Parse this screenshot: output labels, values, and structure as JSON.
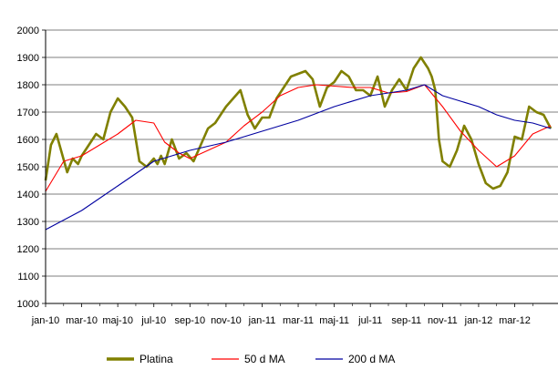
{
  "chart_data": {
    "type": "line",
    "title": "",
    "xlabel": "",
    "ylabel": "",
    "ylim": [
      1000,
      2000
    ],
    "yticks": [
      1000,
      1100,
      1200,
      1300,
      1400,
      1500,
      1600,
      1700,
      1800,
      1900,
      2000
    ],
    "grid": true,
    "legend_position": "bottom",
    "x_tick_labels": [
      "jan-10",
      "mar-10",
      "maj-10",
      "jul-10",
      "sep-10",
      "nov-10",
      "jan-11",
      "mar-11",
      "maj-11",
      "jul-11",
      "sep-11",
      "nov-11",
      "jan-12",
      "mar-12"
    ],
    "x_start": "jan-10",
    "x_end": "apr-12",
    "series": [
      {
        "name": "Platina",
        "color": "#808000",
        "x": [
          0.0,
          0.15,
          0.3,
          0.45,
          0.6,
          0.75,
          0.9,
          1.0,
          1.2,
          1.4,
          1.6,
          1.8,
          2.0,
          2.2,
          2.4,
          2.6,
          2.8,
          3.0,
          3.1,
          3.2,
          3.3,
          3.5,
          3.7,
          3.9,
          4.1,
          4.3,
          4.5,
          4.7,
          4.9,
          5.0,
          5.2,
          5.4,
          5.6,
          5.8,
          6.0,
          6.2,
          6.4,
          6.6,
          6.8,
          7.0,
          7.2,
          7.4,
          7.6,
          7.8,
          8.0,
          8.2,
          8.4,
          8.6,
          8.8,
          9.0,
          9.2,
          9.4,
          9.6,
          9.8,
          10.0,
          10.2,
          10.4,
          10.6,
          10.7,
          10.8,
          10.9,
          11.0,
          11.2,
          11.4,
          11.6,
          11.8,
          12.0,
          12.2,
          12.4,
          12.6,
          12.8,
          13.0,
          13.2,
          13.4,
          13.6,
          13.8,
          14.0
        ],
        "values": [
          1450,
          1580,
          1620,
          1550,
          1480,
          1530,
          1510,
          1540,
          1580,
          1620,
          1600,
          1700,
          1750,
          1720,
          1680,
          1520,
          1500,
          1530,
          1510,
          1540,
          1510,
          1600,
          1530,
          1550,
          1520,
          1580,
          1640,
          1660,
          1700,
          1720,
          1750,
          1780,
          1690,
          1640,
          1680,
          1680,
          1750,
          1790,
          1830,
          1840,
          1850,
          1820,
          1720,
          1790,
          1810,
          1850,
          1830,
          1780,
          1780,
          1760,
          1830,
          1720,
          1780,
          1820,
          1780,
          1860,
          1900,
          1860,
          1830,
          1780,
          1600,
          1520,
          1500,
          1560,
          1650,
          1600,
          1510,
          1440,
          1420,
          1430,
          1480,
          1610,
          1600,
          1720,
          1700,
          1690,
          1640
        ]
      },
      {
        "name": "50 d MA",
        "color": "#ff0000",
        "x": [
          0.0,
          0.5,
          1.0,
          1.5,
          2.0,
          2.5,
          3.0,
          3.3,
          3.7,
          4.0,
          4.5,
          5.0,
          5.5,
          6.0,
          6.5,
          7.0,
          7.5,
          8.0,
          8.5,
          9.0,
          9.5,
          10.0,
          10.5,
          11.0,
          11.5,
          12.0,
          12.5,
          13.0,
          13.5,
          14.0
        ],
        "values": [
          1410,
          1520,
          1540,
          1580,
          1620,
          1670,
          1660,
          1590,
          1550,
          1530,
          1560,
          1590,
          1650,
          1700,
          1760,
          1790,
          1800,
          1795,
          1790,
          1790,
          1770,
          1775,
          1800,
          1720,
          1630,
          1560,
          1500,
          1540,
          1620,
          1650
        ]
      },
      {
        "name": "200 d MA",
        "color": "#0000a0",
        "x": [
          0.0,
          1.0,
          2.0,
          3.0,
          4.0,
          5.0,
          6.0,
          7.0,
          8.0,
          9.0,
          10.0,
          10.5,
          11.0,
          11.5,
          12.0,
          12.5,
          13.0,
          13.5,
          14.0
        ],
        "values": [
          1270,
          1340,
          1430,
          1520,
          1560,
          1590,
          1630,
          1670,
          1720,
          1760,
          1780,
          1800,
          1760,
          1740,
          1720,
          1690,
          1670,
          1660,
          1640
        ]
      }
    ]
  }
}
